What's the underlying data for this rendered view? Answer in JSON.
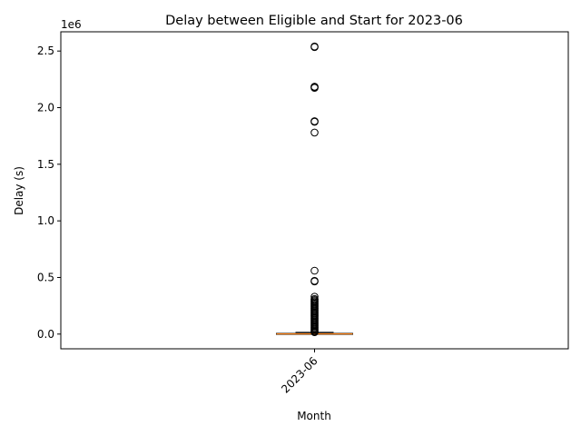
{
  "chart_data": {
    "type": "box",
    "title": "Delay between Eligible and Start for 2023-06",
    "xlabel": "Month",
    "ylabel": "Delay (s)",
    "y_offset_label": "1e6",
    "categories": [
      "2023-06"
    ],
    "y_ticks": [
      {
        "value": 0,
        "label": "0.0"
      },
      {
        "value": 500000,
        "label": "0.5"
      },
      {
        "value": 1000000,
        "label": "1.0"
      },
      {
        "value": 1500000,
        "label": "1.5"
      },
      {
        "value": 2000000,
        "label": "2.0"
      },
      {
        "value": 2500000,
        "label": "2.5"
      }
    ],
    "ylim": [
      -130000,
      2670000
    ],
    "grid": false,
    "legend": "none",
    "x_tick_rotation": "45 degrees",
    "boxes": [
      {
        "category": "2023-06",
        "q1": 0,
        "median": 2000,
        "q3": 6000,
        "whisker_low": 0,
        "whisker_high": 15000,
        "outliers": [
          2540000,
          2535000,
          2185000,
          2180000,
          2175000,
          1880000,
          1875000,
          1780000,
          560000,
          470000,
          465000,
          330000,
          310000,
          300000,
          290000,
          280000,
          270000,
          260000,
          250000,
          240000,
          230000,
          220000,
          210000,
          200000,
          190000,
          180000,
          170000,
          160000,
          150000,
          140000,
          130000,
          120000,
          110000,
          100000,
          90000,
          80000,
          70000,
          60000,
          50000,
          40000,
          30000,
          20000,
          17000
        ]
      }
    ],
    "colors": {
      "median": "#ff7f0e",
      "box": "#000000",
      "outlier": "#000000",
      "background": "#ffffff"
    }
  }
}
